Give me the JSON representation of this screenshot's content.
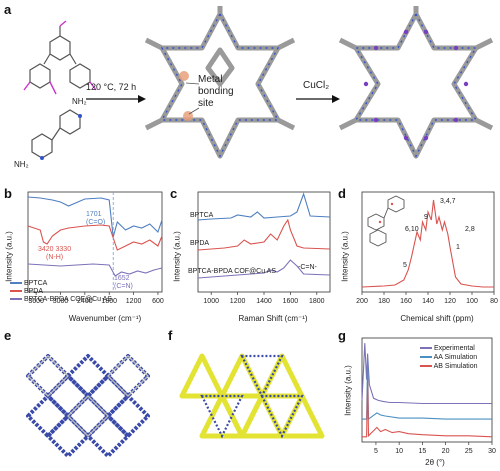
{
  "panels": {
    "a": {
      "letter": "a",
      "condition": "120 °C, 72 h",
      "site_line1": "Metal",
      "site_line2": "bonding",
      "site_line3": "site",
      "reagent": "CuCl₂",
      "amine_group": "NH₂",
      "colors": {
        "aldehyde": "#cc33cc",
        "nitrogen": "#3355cc",
        "framework_gray": "#9a9a9a",
        "site_highlight": "#e8a07a"
      }
    },
    "b": {
      "letter": "b",
      "ylabel": "Intensity (a.u.)",
      "xlabel": "Wavenumber (cm⁻¹)",
      "ann_1701a": "1701",
      "ann_1701b": "(C=O)",
      "ann_3420": "3420 3330",
      "ann_nh": "(N-H)",
      "ann_1652a": "1652",
      "ann_1652b": "(C=N)"
    },
    "c": {
      "letter": "c",
      "xlabel": "Raman Shift (cm⁻¹)",
      "ylabel": "Intensity (a.u.)",
      "label_bptca": "BPTCA",
      "label_bpda": "BPDA",
      "label_cof": "BPTCA-BPDA COF@Cu AS",
      "ann_cn": "-C=N-"
    },
    "d": {
      "letter": "d",
      "xlabel": "Chemical shift (ppm)",
      "ylabel": "Intensity (a.u.)",
      "peak_34_7": "3,4,7",
      "peak_9": "9",
      "peak_610": "6,10",
      "peak_28": "2,8",
      "peak_5": "5",
      "peak_1": "1"
    },
    "e": {
      "letter": "e"
    },
    "f": {
      "letter": "f"
    },
    "g": {
      "letter": "g",
      "ylabel": "Intensity (a.u.)",
      "xlabel": "2θ (°)"
    }
  },
  "chart_data": [
    {
      "id": "b",
      "type": "line",
      "xlabel": "Wavenumber (cm⁻¹)",
      "ylabel": "Intensity (a.u.)",
      "xlim": [
        3800,
        500
      ],
      "xticks": [
        3600,
        3000,
        2400,
        1800,
        1200,
        600
      ],
      "legend_position": "bottom-left",
      "series": [
        {
          "name": "BPTCA",
          "color": "#4f7fc0",
          "x": [
            3800,
            3500,
            3200,
            3000,
            2800,
            2400,
            2000,
            1800,
            1701,
            1600,
            1400,
            1200,
            1000,
            800,
            600,
            500
          ],
          "y": [
            0.95,
            0.94,
            0.92,
            0.9,
            0.86,
            0.93,
            0.94,
            0.92,
            0.55,
            0.7,
            0.62,
            0.66,
            0.64,
            0.68,
            0.6,
            0.72
          ]
        },
        {
          "name": "BPDA",
          "color": "#d9534f",
          "x": [
            3800,
            3500,
            3420,
            3330,
            3200,
            3000,
            2800,
            2400,
            2000,
            1800,
            1600,
            1400,
            1200,
            1000,
            800,
            600,
            500
          ],
          "y": [
            0.66,
            0.62,
            0.5,
            0.48,
            0.56,
            0.62,
            0.64,
            0.66,
            0.67,
            0.66,
            0.42,
            0.46,
            0.5,
            0.48,
            0.52,
            0.46,
            0.56
          ]
        },
        {
          "name": "BPTCA-BPDA COF@Cu AS",
          "color": "#7c72b8",
          "x": [
            3800,
            3400,
            3000,
            2600,
            2200,
            1800,
            1652,
            1500,
            1300,
            1100,
            900,
            700,
            500
          ],
          "y": [
            0.28,
            0.27,
            0.26,
            0.27,
            0.28,
            0.27,
            0.16,
            0.2,
            0.18,
            0.21,
            0.19,
            0.22,
            0.24
          ]
        }
      ]
    },
    {
      "id": "c",
      "type": "line",
      "xlabel": "Raman Shift (cm⁻¹)",
      "ylabel": "Intensity (a.u.)",
      "xlim": [
        900,
        1900
      ],
      "xticks": [
        1000,
        1200,
        1400,
        1600,
        1800
      ],
      "series": [
        {
          "name": "BPTCA",
          "color": "#4f7fc0",
          "x": [
            900,
            1000,
            1150,
            1200,
            1300,
            1350,
            1400,
            1500,
            1600,
            1650,
            1700,
            1750,
            1900
          ],
          "y": [
            0.72,
            0.73,
            0.74,
            0.77,
            0.75,
            0.8,
            0.74,
            0.75,
            0.76,
            0.8,
            0.98,
            0.76,
            0.75
          ]
        },
        {
          "name": "BPDA",
          "color": "#d9534f",
          "x": [
            900,
            1000,
            1100,
            1200,
            1250,
            1300,
            1400,
            1450,
            1500,
            1550,
            1580,
            1600,
            1650,
            1700,
            1900
          ],
          "y": [
            0.42,
            0.43,
            0.44,
            0.46,
            0.52,
            0.48,
            0.5,
            0.58,
            0.52,
            0.66,
            0.72,
            0.62,
            0.46,
            0.44,
            0.43
          ]
        },
        {
          "name": "BPTCA-BPDA COF@Cu AS",
          "color": "#7c72b8",
          "x": [
            900,
            1000,
            1100,
            1200,
            1300,
            1400,
            1450,
            1500,
            1550,
            1600,
            1650,
            1700,
            1900
          ],
          "y": [
            0.14,
            0.15,
            0.16,
            0.17,
            0.18,
            0.19,
            0.22,
            0.2,
            0.24,
            0.32,
            0.26,
            0.18,
            0.17
          ]
        }
      ]
    },
    {
      "id": "d",
      "type": "line",
      "xlabel": "Chemical shift (ppm)",
      "ylabel": "Intensity (a.u.)",
      "xlim": [
        200,
        80
      ],
      "xticks": [
        200,
        180,
        160,
        140,
        120,
        100,
        80
      ],
      "series": [
        {
          "name": "",
          "color": "#d9534f",
          "x": [
            200,
            180,
            170,
            162,
            158,
            155,
            152,
            150,
            147,
            145,
            142,
            140,
            137,
            135,
            132,
            130,
            127,
            125,
            122,
            120,
            115,
            110,
            100,
            90,
            80
          ],
          "y": [
            0.05,
            0.06,
            0.07,
            0.12,
            0.22,
            0.35,
            0.5,
            0.6,
            0.52,
            0.7,
            0.62,
            0.8,
            0.72,
            0.92,
            0.68,
            0.75,
            0.62,
            0.7,
            0.58,
            0.45,
            0.15,
            0.08,
            0.06,
            0.05,
            0.05
          ]
        }
      ]
    },
    {
      "id": "g",
      "type": "line",
      "xlabel": "2θ (°)",
      "ylabel": "Intensity (a.u.)",
      "xlim": [
        2,
        30
      ],
      "xticks": [
        5,
        10,
        15,
        20,
        25,
        30
      ],
      "legend_position": "top-right",
      "series": [
        {
          "name": "Experimental",
          "color": "#7c72b8",
          "x": [
            2,
            2.6,
            3.0,
            3.2,
            3.6,
            4.5,
            5.5,
            6.5,
            8,
            10,
            15,
            20,
            25,
            30
          ],
          "y": [
            0.4,
            0.95,
            0.6,
            0.85,
            0.55,
            0.42,
            0.4,
            0.39,
            0.38,
            0.38,
            0.37,
            0.37,
            0.37,
            0.37
          ]
        },
        {
          "name": "AA Simulation",
          "color": "#4a90c0",
          "x": [
            2,
            3.0,
            3.2,
            3.4,
            5.2,
            6.0,
            7.0,
            10,
            15,
            20,
            25,
            30
          ],
          "y": [
            0.22,
            0.22,
            0.8,
            0.22,
            0.28,
            0.26,
            0.25,
            0.23,
            0.23,
            0.22,
            0.22,
            0.22
          ]
        },
        {
          "name": "AB Simulation",
          "color": "#d9534f",
          "x": [
            2,
            3.0,
            3.2,
            3.4,
            5.2,
            6.0,
            7.0,
            8.5,
            10,
            12,
            15,
            20,
            25,
            30
          ],
          "y": [
            0.05,
            0.05,
            0.6,
            0.06,
            0.14,
            0.1,
            0.12,
            0.09,
            0.1,
            0.08,
            0.07,
            0.06,
            0.06,
            0.05
          ]
        }
      ]
    }
  ]
}
